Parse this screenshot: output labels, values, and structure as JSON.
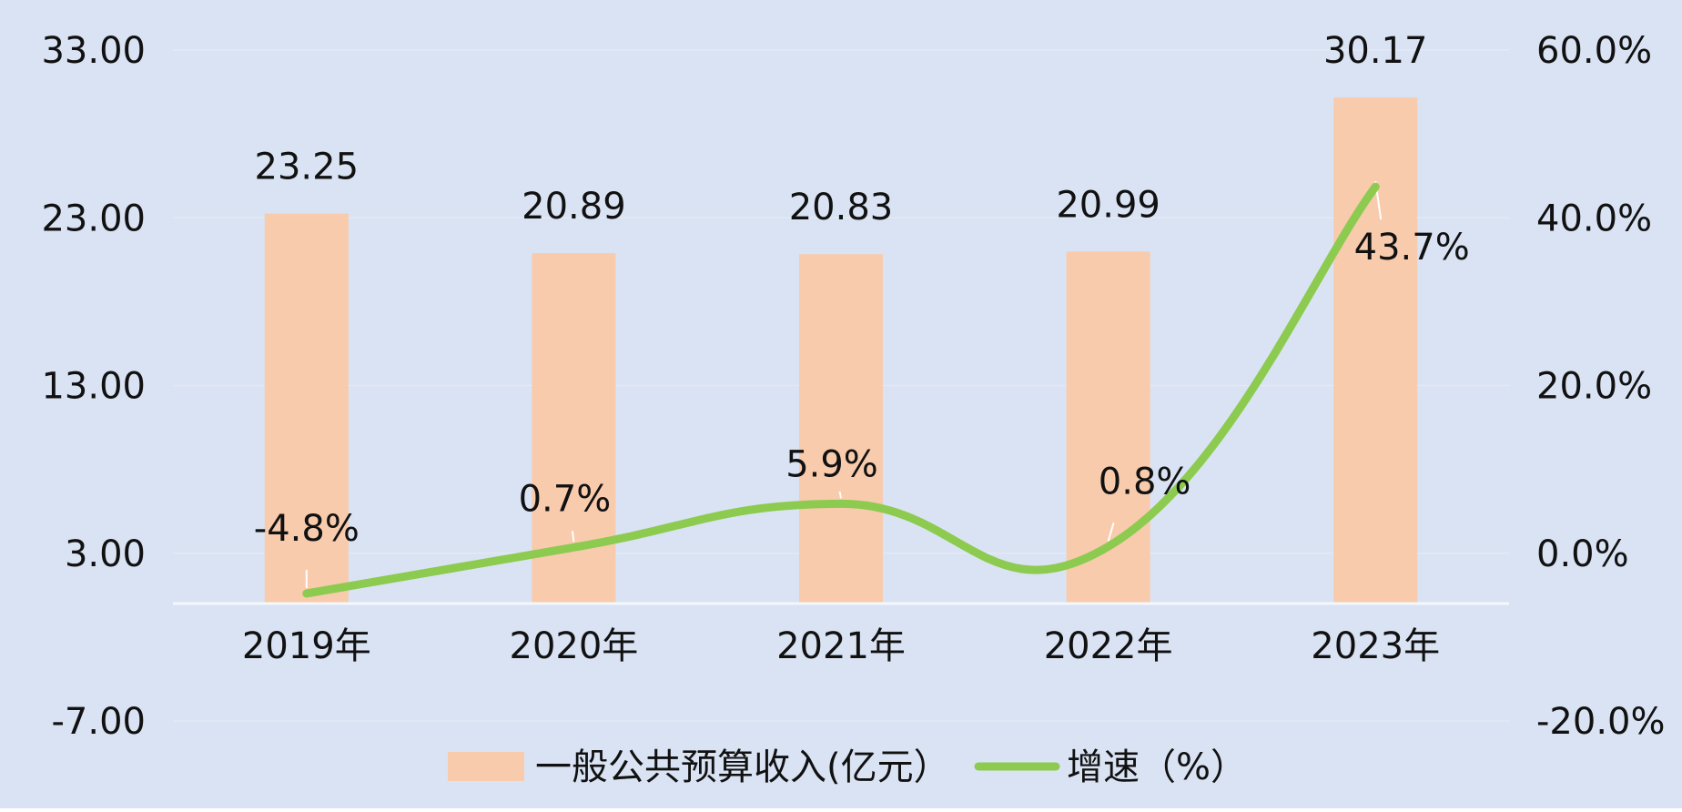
{
  "chart_data": {
    "type": "bar",
    "categories": [
      "2019年",
      "2020年",
      "2021年",
      "2022年",
      "2023年"
    ],
    "series": [
      {
        "name": "一般公共预算收入(亿元）",
        "type": "bar",
        "axis": "left",
        "values": [
          23.25,
          20.89,
          20.83,
          20.99,
          30.17
        ],
        "labels": [
          "23.25",
          "20.89",
          "20.83",
          "20.99",
          "30.17"
        ],
        "color": "#F8CBAD"
      },
      {
        "name": "增速（%）",
        "type": "line",
        "axis": "right",
        "smooth": true,
        "values": [
          -4.8,
          0.7,
          5.9,
          0.8,
          43.7
        ],
        "labels": [
          "-4.8%",
          "0.7%",
          "5.9%",
          "0.8%",
          "43.7%"
        ],
        "color": "#8CCB4F"
      }
    ],
    "y_left": {
      "ylim": [
        -7,
        33
      ],
      "ticks": [
        -7,
        3,
        13,
        23,
        33
      ],
      "tick_labels": [
        "-7.00",
        "3.00",
        "13.00",
        "23.00",
        "33.00"
      ]
    },
    "y_right": {
      "ylim": [
        -20,
        60
      ],
      "ticks": [
        -20,
        0,
        20,
        40,
        60
      ],
      "tick_labels": [
        "-20.0%",
        "0.0%",
        "20.0%",
        "40.0%",
        "60.0%"
      ]
    },
    "legend": {
      "position": "bottom"
    },
    "grid": false,
    "background_color": "#DAE3F3"
  }
}
